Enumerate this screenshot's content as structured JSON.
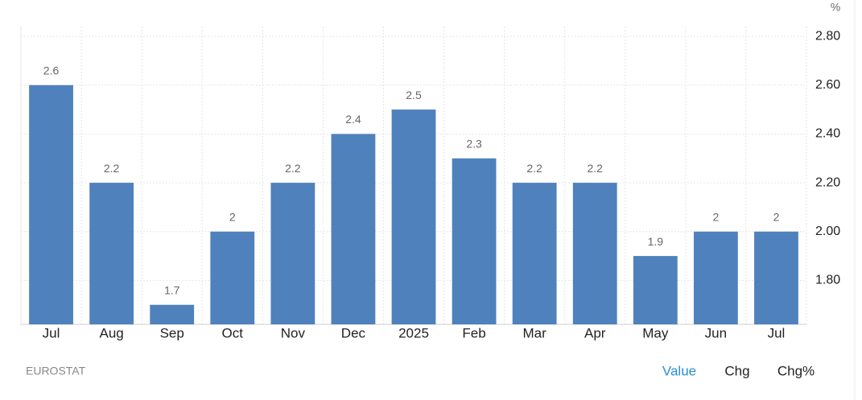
{
  "chart_data": {
    "type": "bar",
    "unit": "%",
    "source": "EUROSTAT",
    "categories": [
      "Jul",
      "Aug",
      "Sep",
      "Oct",
      "Nov",
      "Dec",
      "2025",
      "Feb",
      "Mar",
      "Apr",
      "May",
      "Jun",
      "Jul"
    ],
    "values": [
      2.6,
      2.2,
      1.7,
      2,
      2.2,
      2.4,
      2.5,
      2.3,
      2.2,
      2.2,
      1.9,
      2,
      2
    ],
    "color": "#4f81bd",
    "ylim": [
      1.62,
      2.84
    ],
    "yticks": [
      {
        "value": 1.8,
        "label": "1.80"
      },
      {
        "value": 2.0,
        "label": "2.00"
      },
      {
        "value": 2.2,
        "label": "2.20"
      },
      {
        "value": 2.4,
        "label": "2.40"
      },
      {
        "value": 2.6,
        "label": "2.60"
      },
      {
        "value": 2.8,
        "label": "2.80"
      }
    ],
    "grid": true,
    "buttons": [
      "Value",
      "Chg",
      "Chg%"
    ]
  }
}
